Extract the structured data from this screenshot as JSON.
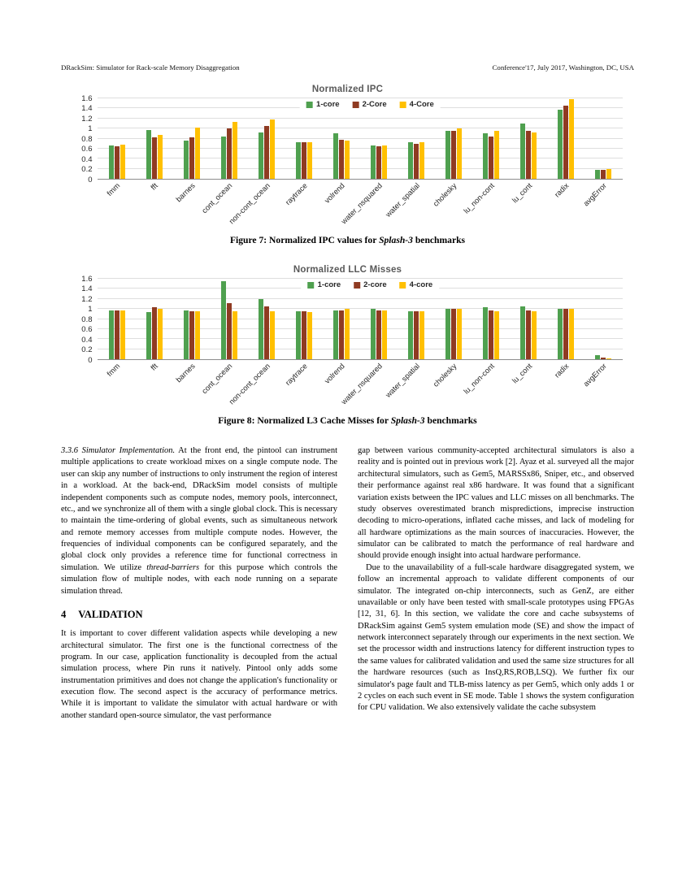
{
  "page": {
    "header_left": "DRackSim: Simulator for Rack-scale Memory Disaggregation",
    "header_right": "Conference'17, July 2017, Washington, DC, USA"
  },
  "chart_data": [
    {
      "type": "bar",
      "title": "Normalized IPC",
      "xlabel": "",
      "ylabel": "",
      "ylim": [
        0,
        1.6
      ],
      "yticks": [
        0,
        0.2,
        0.4,
        0.6,
        0.8,
        1,
        1.2,
        1.4,
        1.6
      ],
      "grid": true,
      "legend_position": "top-center",
      "categories": [
        "fmm",
        "fft",
        "barnes",
        "cont_ocean",
        "non-cont_ocean",
        "raytrace",
        "volrend",
        "water_nsquared",
        "water_spatial",
        "cholesky",
        "lu_non-cont",
        "lu_cont",
        "radix",
        "avgError"
      ],
      "series": [
        {
          "name": "1-core",
          "color": "#4FA04F",
          "values": [
            0.66,
            0.97,
            0.76,
            0.84,
            0.92,
            0.73,
            0.9,
            0.66,
            0.73,
            0.95,
            0.9,
            1.1,
            1.38,
            0.18
          ]
        },
        {
          "name": "2-Core",
          "color": "#8F3B22",
          "values": [
            0.65,
            0.83,
            0.83,
            1.0,
            1.05,
            0.72,
            0.78,
            0.64,
            0.7,
            0.95,
            0.84,
            0.95,
            1.45,
            0.17
          ]
        },
        {
          "name": "4-Core",
          "color": "#FFC000",
          "values": [
            0.68,
            0.87,
            1.02,
            1.13,
            1.18,
            0.72,
            0.76,
            0.66,
            0.72,
            1.0,
            0.95,
            0.92,
            1.58,
            0.2
          ]
        }
      ]
    },
    {
      "type": "bar",
      "title": "Normalized LLC Misses",
      "xlabel": "",
      "ylabel": "",
      "ylim": [
        0,
        1.6
      ],
      "yticks": [
        0,
        0.2,
        0.4,
        0.6,
        0.8,
        1,
        1.2,
        1.4,
        1.6
      ],
      "grid": true,
      "legend_position": "top-center",
      "categories": [
        "fmm",
        "fft",
        "barnes",
        "cont_ocean",
        "non-cont_ocean",
        "raytrace",
        "volrend",
        "water_nsquared",
        "water_spatial",
        "cholesky",
        "lu_non-cont",
        "lu_cont",
        "radix",
        "avgError"
      ],
      "series": [
        {
          "name": "1-core",
          "color": "#4FA04F",
          "values": [
            0.97,
            0.93,
            0.97,
            1.55,
            1.2,
            0.95,
            0.97,
            1.0,
            0.95,
            1.0,
            1.03,
            1.05,
            1.0,
            0.08
          ]
        },
        {
          "name": "2-core",
          "color": "#8F3B22",
          "values": [
            0.97,
            1.03,
            0.95,
            1.12,
            1.05,
            0.95,
            0.97,
            0.97,
            0.95,
            1.0,
            0.97,
            0.97,
            1.0,
            0.03
          ]
        },
        {
          "name": "4-core",
          "color": "#FFC000",
          "values": [
            0.97,
            1.0,
            0.95,
            0.95,
            0.95,
            0.94,
            1.0,
            0.97,
            0.95,
            1.0,
            0.95,
            0.95,
            1.0,
            0.02
          ]
        }
      ]
    }
  ],
  "captions": {
    "fig7": {
      "prefix": "Figure 7: Normalized IPC values for ",
      "italic": "Splash-3",
      "suffix": " benchmarks"
    },
    "fig8": {
      "prefix": "Figure 8: Normalized L3 Cache Misses for ",
      "italic": "Splash-3",
      "suffix": " benchmarks"
    }
  },
  "body": {
    "left": {
      "p1_lead": "3.3.6   Simulator Implementation.",
      "p1_a": " At the front end, the pintool can instrument multiple applications to create workload mixes on a single compute node. The user can skip any number of instructions to only instrument the region of interest in a workload. At the back-end, DRackSim model consists of multiple independent components such as compute nodes, memory pools, interconnect, etc., and we synchronize all of them with a single global clock. This is necessary to maintain the time-ordering of global events, such as simultaneous network and remote memory accesses from multiple compute nodes. However, the frequencies of individual components can be configured separately, and the global clock only provides a reference time for functional correctness in simulation. We utilize ",
      "p1_em": "thread-barriers",
      "p1_b": " for this purpose which controls the simulation flow of multiple nodes, with each node running on a separate simulation thread.",
      "h_num": "4",
      "h_title": "VALIDATION",
      "p2": "It is important to cover different validation aspects while developing a new architectural simulator. The first one is the functional correctness of the program. In our case, application functionality is decoupled from the actual simulation process, where Pin runs it natively. Pintool only adds some instrumentation primitives and does not change the application's functionality or execution flow. The second aspect is the accuracy of performance metrics. While it is important to validate the simulator with actual hardware or with another standard open-source simulator, the vast performance"
    },
    "right": {
      "p1": "gap between various community-accepted architectural simulators is also a reality and is pointed out in previous work [2]. Ayaz et al. surveyed all the major architectural simulators, such as Gem5, MARSSx86, Sniper, etc., and observed their performance against real x86 hardware. It was found that a significant variation exists between the IPC values and LLC misses on all benchmarks. The study observes overestimated branch mispredictions, imprecise instruction decoding to micro-operations, inflated cache misses, and lack of modeling for all hardware optimizations as the main sources of inaccuracies. However, the simulator can be calibrated to match the performance of real hardware and should provide enough insight into actual hardware performance.",
      "p2": "Due to the unavailability of a full-scale hardware disaggregated system, we follow an incremental approach to validate different components of our simulator. The integrated on-chip interconnects, such as GenZ, are either unavailable or only have been tested with small-scale prototypes using FPGAs [12, 31, 6]. In this section, we validate the core and cache subsystems of DRackSim against Gem5 system emulation mode (SE) and show the impact of network interconnect separately through our experiments in the next section. We set the processor width and instructions latency for different instruction types to the same values for calibrated validation and used the same size structures for all the hardware resources (such as InsQ,RS,ROB,LSQ). We further fix our simulator's page fault and TLB-miss latency as per Gem5, which only adds 1 or 2 cycles on each such event in SE mode. Table 1 shows the system configuration for CPU validation. We also extensively validate the cache subsystem"
    }
  }
}
